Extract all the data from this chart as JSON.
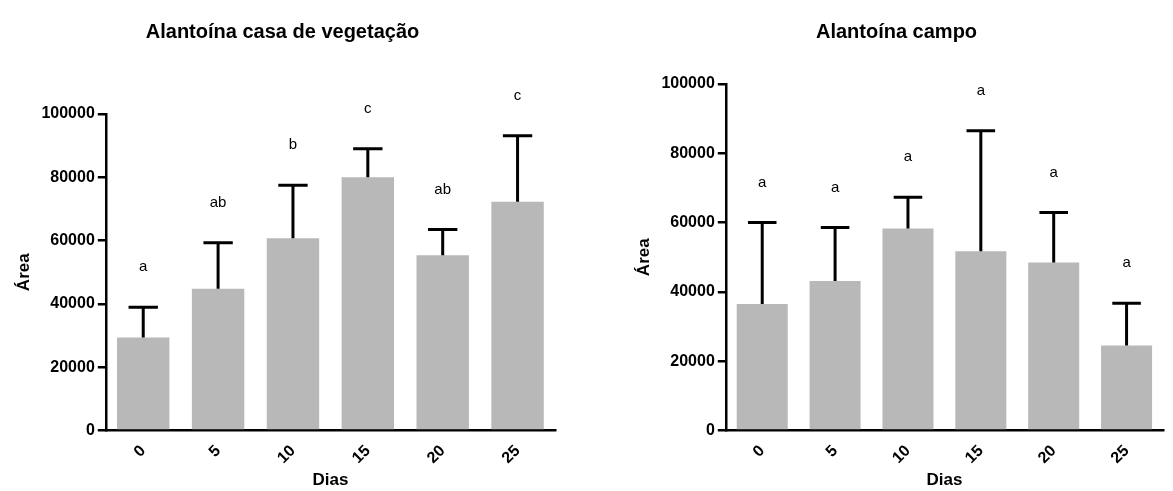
{
  "chart_data": [
    {
      "type": "bar",
      "title": "Alantoína casa de vegetação",
      "xlabel": "Dias",
      "ylabel": "Área",
      "categories": [
        "0",
        "5",
        "10",
        "15",
        "20",
        "25"
      ],
      "series": [
        {
          "color": "#b8b8b8",
          "values": [
            29400,
            44800,
            60700,
            80000,
            55400,
            72300
          ],
          "errors": [
            [
              29400,
              38900
            ],
            [
              44800,
              59300
            ],
            [
              60700,
              77500
            ],
            [
              80000,
              89000
            ],
            [
              55400,
              63500
            ],
            [
              72300,
              93100
            ]
          ]
        }
      ],
      "ylim": [
        0,
        100000
      ],
      "yticks": [
        0,
        20000,
        40000,
        60000,
        80000,
        100000
      ],
      "grid": false,
      "legend": false,
      "annotations": [
        "a",
        "ab",
        "b",
        "c",
        "ab",
        "c"
      ]
    },
    {
      "type": "bar",
      "title": "Alantoína campo",
      "xlabel": "Dias",
      "ylabel": "Área",
      "categories": [
        "0",
        "5",
        "10",
        "15",
        "20",
        "25"
      ],
      "series": [
        {
          "color": "#b8b8b8",
          "values": [
            36500,
            43100,
            58300,
            51700,
            48500,
            24500
          ],
          "errors": [
            [
              36500,
              60000
            ],
            [
              43100,
              58600
            ],
            [
              58300,
              67300
            ],
            [
              51700,
              86500
            ],
            [
              48500,
              62900
            ],
            [
              24500,
              36700
            ]
          ]
        }
      ],
      "ylim": [
        0,
        100000
      ],
      "yticks": [
        0,
        20000,
        40000,
        60000,
        80000,
        100000
      ],
      "grid": false,
      "legend": false,
      "annotations": [
        "a",
        "a",
        "a",
        "a",
        "a",
        "a"
      ]
    }
  ]
}
